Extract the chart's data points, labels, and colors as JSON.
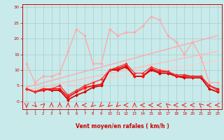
{
  "bg_color": "#c8eaea",
  "grid_color": "#a8cccc",
  "xlabel": "Vent moyen/en rafales ( km/h )",
  "x_ticks": [
    0,
    1,
    2,
    3,
    4,
    5,
    6,
    7,
    8,
    9,
    10,
    11,
    12,
    13,
    14,
    15,
    16,
    17,
    18,
    19,
    20,
    21,
    22,
    23
  ],
  "ylim": [
    -2.5,
    31
  ],
  "yticks": [
    0,
    5,
    10,
    15,
    20,
    25,
    30
  ],
  "lines": [
    {
      "x": [
        0,
        23
      ],
      "y": [
        4.5,
        21
      ],
      "color": "#ffaaaa",
      "marker": null,
      "markersize": 0,
      "linewidth": 1.0,
      "alpha": 1.0
    },
    {
      "x": [
        0,
        23
      ],
      "y": [
        3.5,
        16
      ],
      "color": "#ffbbbb",
      "marker": null,
      "markersize": 0,
      "linewidth": 1.0,
      "alpha": 1.0
    },
    {
      "x": [
        0,
        23
      ],
      "y": [
        3.0,
        13
      ],
      "color": "#ffcccc",
      "marker": null,
      "markersize": 0,
      "linewidth": 0.9,
      "alpha": 1.0
    },
    {
      "x": [
        0,
        1,
        2,
        3,
        4,
        5,
        6,
        7,
        8,
        9,
        10,
        11,
        12,
        13,
        14,
        15,
        16,
        17,
        18,
        19,
        20,
        21,
        22,
        23
      ],
      "y": [
        12,
        6,
        8,
        8,
        9,
        16,
        23,
        21,
        12,
        12,
        23,
        21,
        22,
        22,
        24,
        27,
        26,
        21,
        19,
        15,
        19,
        14,
        6,
        6
      ],
      "color": "#ffaaaa",
      "marker": "D",
      "markersize": 2.0,
      "linewidth": 1.0,
      "alpha": 1.0
    },
    {
      "x": [
        0,
        1,
        2,
        3,
        4,
        5,
        6,
        7,
        8,
        9,
        10,
        11,
        12,
        13,
        14,
        15,
        16,
        17,
        18,
        19,
        20,
        21,
        22,
        23
      ],
      "y": [
        4,
        3,
        4,
        4,
        4,
        1,
        3,
        4,
        5,
        5,
        10,
        10.5,
        11.5,
        8,
        8,
        10.5,
        9,
        9,
        8,
        8,
        8,
        8,
        4,
        3
      ],
      "color": "#ff6666",
      "marker": "D",
      "markersize": 2.0,
      "linewidth": 1.0,
      "alpha": 1.0
    },
    {
      "x": [
        0,
        1,
        2,
        3,
        4,
        5,
        6,
        7,
        8,
        9,
        10,
        11,
        12,
        13,
        14,
        15,
        16,
        17,
        18,
        19,
        20,
        21,
        22,
        23
      ],
      "y": [
        4,
        3,
        4,
        3.5,
        3.5,
        0.5,
        2,
        3,
        4.5,
        5,
        10,
        10,
        11,
        8,
        8,
        10,
        9,
        9,
        8,
        7.5,
        7.5,
        7.5,
        4,
        3
      ],
      "color": "#cc0000",
      "marker": "D",
      "markersize": 2.0,
      "linewidth": 1.2,
      "alpha": 1.0
    },
    {
      "x": [
        0,
        1,
        2,
        3,
        4,
        5,
        6,
        7,
        8,
        9,
        10,
        11,
        12,
        13,
        14,
        15,
        16,
        17,
        18,
        19,
        20,
        21,
        22,
        23
      ],
      "y": [
        4,
        3,
        3.5,
        4,
        4,
        1.5,
        3,
        4.5,
        5,
        5.5,
        10,
        10.5,
        11.5,
        8,
        8,
        10.5,
        9.5,
        9.5,
        8,
        8,
        8,
        8,
        5,
        4
      ],
      "color": "#ff0000",
      "marker": "D",
      "markersize": 2.0,
      "linewidth": 1.0,
      "alpha": 1.0
    },
    {
      "x": [
        0,
        1,
        2,
        3,
        4,
        5,
        6,
        7,
        8,
        9,
        10,
        11,
        12,
        13,
        14,
        15,
        16,
        17,
        18,
        19,
        20,
        21,
        22,
        23
      ],
      "y": [
        4,
        3,
        4,
        4,
        5,
        2,
        3.5,
        5,
        6,
        7,
        10,
        11,
        12,
        9,
        9,
        11,
        10,
        9.5,
        8.5,
        8.5,
        8,
        8,
        5,
        3.5
      ],
      "color": "#ee3333",
      "marker": "D",
      "markersize": 2.0,
      "linewidth": 0.9,
      "alpha": 1.0
    }
  ],
  "arrow_directions": [
    0,
    45,
    135,
    180,
    180,
    180,
    180,
    270,
    315,
    315,
    315,
    315,
    270,
    180,
    270,
    270,
    270,
    225,
    270,
    270,
    270,
    225,
    270,
    270
  ]
}
